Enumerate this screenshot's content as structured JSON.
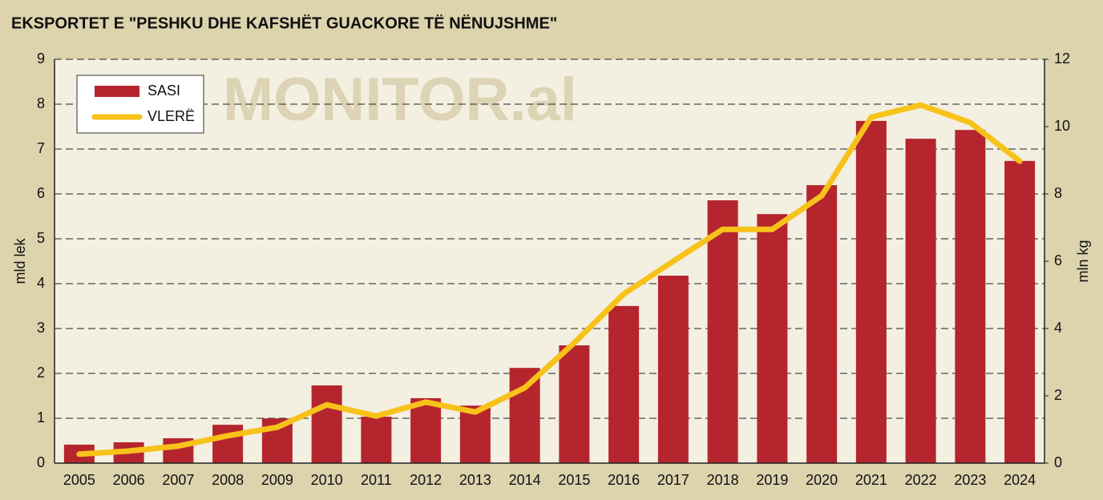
{
  "chart_data": {
    "type": "bar_line",
    "title": "EKSPORTET E  \"PESHKU DHE KAFSHËT GUACKORE TË NËNUJSHME\"",
    "watermark": "MONITOR.al",
    "ylabel": "mld lek",
    "y2label": "mln kg",
    "categories": [
      "2005",
      "2006",
      "2007",
      "2008",
      "2009",
      "2010",
      "2011",
      "2012",
      "2013",
      "2014",
      "2015",
      "2016",
      "2017",
      "2018",
      "2019",
      "2020",
      "2021",
      "2022",
      "2023",
      "2024"
    ],
    "series": [
      {
        "name": "SASI",
        "type": "bar",
        "axis": "y2",
        "color": "#b5252e",
        "values": [
          0.55,
          0.62,
          0.74,
          1.14,
          1.33,
          2.31,
          1.38,
          1.93,
          1.71,
          2.83,
          3.5,
          4.67,
          5.57,
          7.81,
          7.4,
          8.26,
          10.17,
          9.64,
          9.9,
          8.98
        ]
      },
      {
        "name": "VLERË",
        "type": "line",
        "axis": "y",
        "color": "#f7c21a",
        "values": [
          0.2,
          0.27,
          0.38,
          0.61,
          0.8,
          1.3,
          1.05,
          1.36,
          1.14,
          1.68,
          2.68,
          3.77,
          4.5,
          5.21,
          5.21,
          5.96,
          7.71,
          7.98,
          7.59,
          6.73
        ]
      }
    ],
    "ylim": [
      0,
      9
    ],
    "yticks": [
      0,
      1,
      2,
      3,
      4,
      5,
      6,
      7,
      8,
      9
    ],
    "y2lim": [
      0,
      12
    ],
    "y2ticks": [
      0,
      2,
      4,
      6,
      8,
      10,
      12
    ],
    "grid": true,
    "legend": "upper left"
  }
}
